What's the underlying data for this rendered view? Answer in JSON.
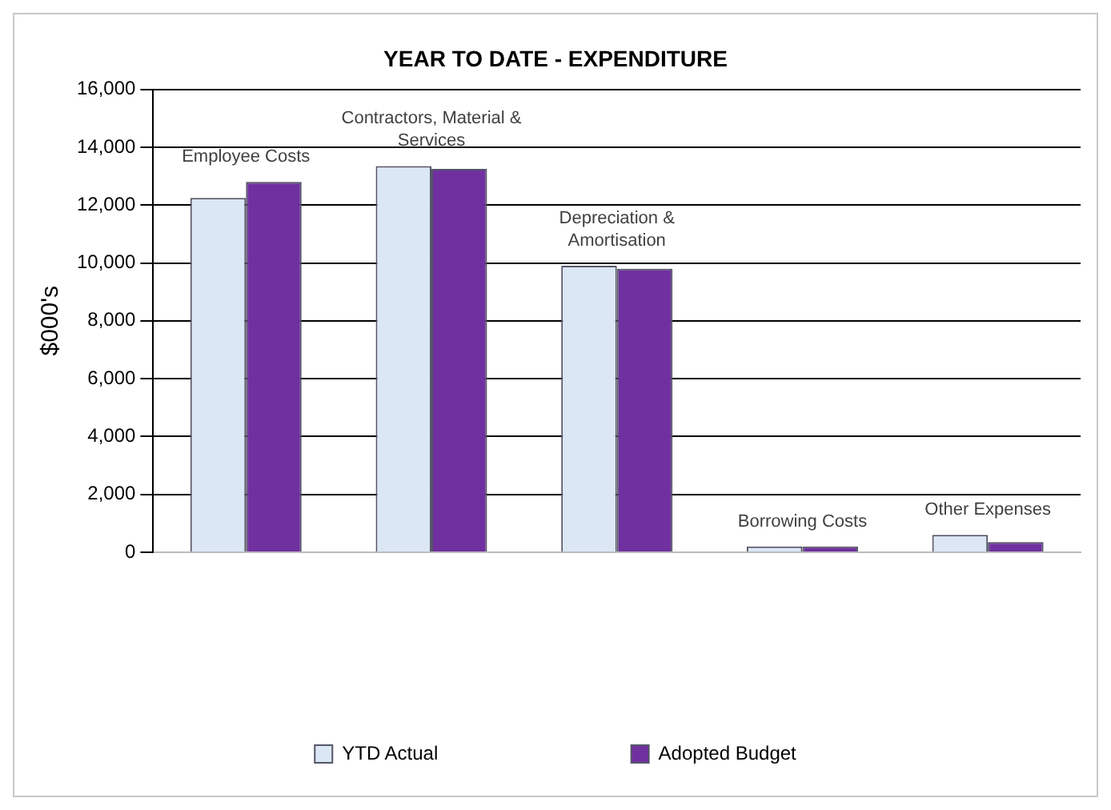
{
  "chart_data": {
    "type": "bar",
    "title": "YEAR TO DATE - EXPENDITURE",
    "ylabel": "$000's",
    "categories": [
      "Employee Costs",
      "Contractors, Material & Services",
      "Depreciation & Amortisation",
      "Borrowing Costs",
      "Other Expenses"
    ],
    "series": [
      {
        "name": "YTD Actual",
        "color": "#dbe7f4",
        "values": [
          12250,
          13350,
          9900,
          200,
          600
        ]
      },
      {
        "name": "Adopted Budget",
        "color": "#7030a0",
        "values": [
          12800,
          13250,
          9800,
          200,
          350
        ]
      }
    ],
    "ylim": [
      0,
      16000
    ],
    "yticks": [
      0,
      {
        "value": 2000,
        "label": "2,000"
      },
      {
        "value": 4000,
        "label": "4,000"
      },
      {
        "value": 6000,
        "label": "6,000"
      },
      {
        "value": 8000,
        "label": "8,000"
      },
      {
        "value": 10000,
        "label": "10,000"
      },
      {
        "value": 12000,
        "label": "12,000"
      },
      {
        "value": 14000,
        "label": "14,000"
      },
      {
        "value": 16000,
        "label": "16,000"
      }
    ],
    "grid": "y",
    "legend": "bottom",
    "tick_labels": "y"
  }
}
